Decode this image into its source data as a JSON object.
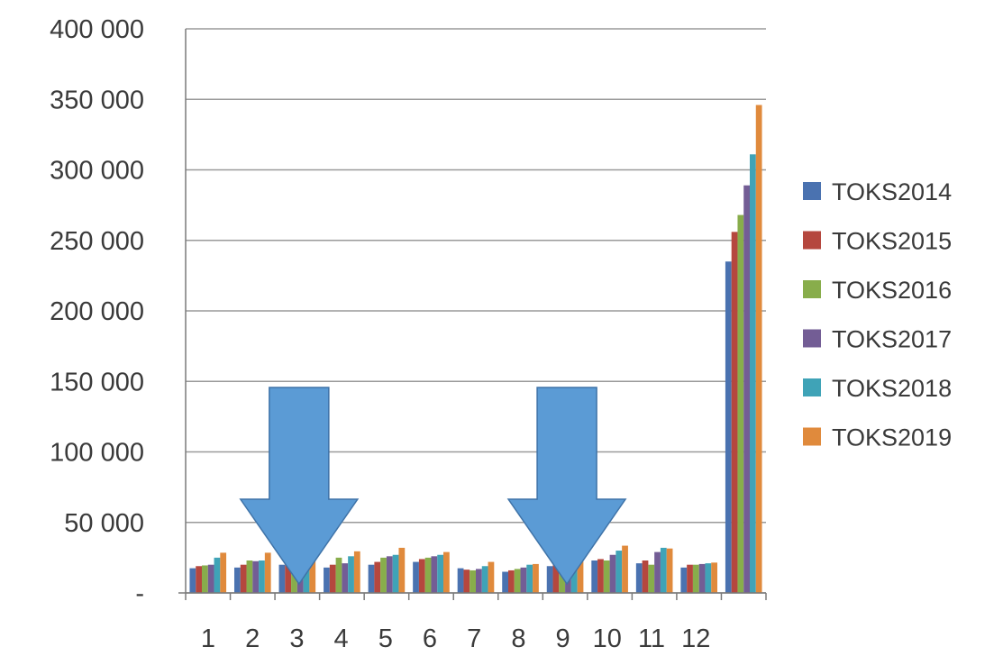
{
  "chart_data": {
    "type": "bar",
    "title": "",
    "xlabel": "",
    "ylabel": "",
    "ylim": [
      0,
      400000
    ],
    "y_tick_values": [
      0,
      50000,
      100000,
      150000,
      200000,
      250000,
      300000,
      350000,
      400000
    ],
    "y_tick_labels": [
      "-",
      "50 000",
      "100 000",
      "150 000",
      "200 000",
      "250 000",
      "300 000",
      "350 000",
      "400 000"
    ],
    "categories": [
      "1",
      "2",
      "3",
      "4",
      "5",
      "6",
      "7",
      "8",
      "9",
      "10",
      "11",
      "12",
      ""
    ],
    "grid": "horizontal",
    "legend_position": "right",
    "series": [
      {
        "name": "TOKS2014",
        "color": "#4a72b0",
        "values": [
          17500,
          18000,
          20000,
          18000,
          20000,
          22000,
          17500,
          15000,
          19000,
          23000,
          21000,
          18000,
          235000
        ]
      },
      {
        "name": "TOKS2015",
        "color": "#b5473e",
        "values": [
          19000,
          20000,
          21500,
          20000,
          22000,
          24000,
          16500,
          16000,
          20000,
          24000,
          23000,
          20000,
          256000
        ]
      },
      {
        "name": "TOKS2016",
        "color": "#88ad4b",
        "values": [
          19500,
          23000,
          23000,
          25000,
          25000,
          25000,
          16000,
          17000,
          21000,
          23000,
          20000,
          20000,
          268000
        ]
      },
      {
        "name": "TOKS2017",
        "color": "#735d95",
        "values": [
          20000,
          22500,
          24000,
          21000,
          26000,
          26000,
          17000,
          18000,
          22000,
          27000,
          29000,
          20500,
          289000
        ]
      },
      {
        "name": "TOKS2018",
        "color": "#3fa3b7",
        "values": [
          25000,
          23000,
          25000,
          26000,
          27000,
          27000,
          19000,
          20000,
          23000,
          30000,
          32000,
          21000,
          311000
        ]
      },
      {
        "name": "TOKS2019",
        "color": "#e08a3c",
        "values": [
          28500,
          28500,
          26000,
          29500,
          32000,
          29000,
          22000,
          20500,
          26500,
          33500,
          31500,
          21500,
          346000
        ]
      }
    ]
  },
  "annotations": [
    {
      "shape": "down-arrow",
      "color": "#5b9bd5",
      "points_at_category": "3"
    },
    {
      "shape": "down-arrow",
      "color": "#5b9bd5",
      "points_at_category": "9"
    }
  ]
}
